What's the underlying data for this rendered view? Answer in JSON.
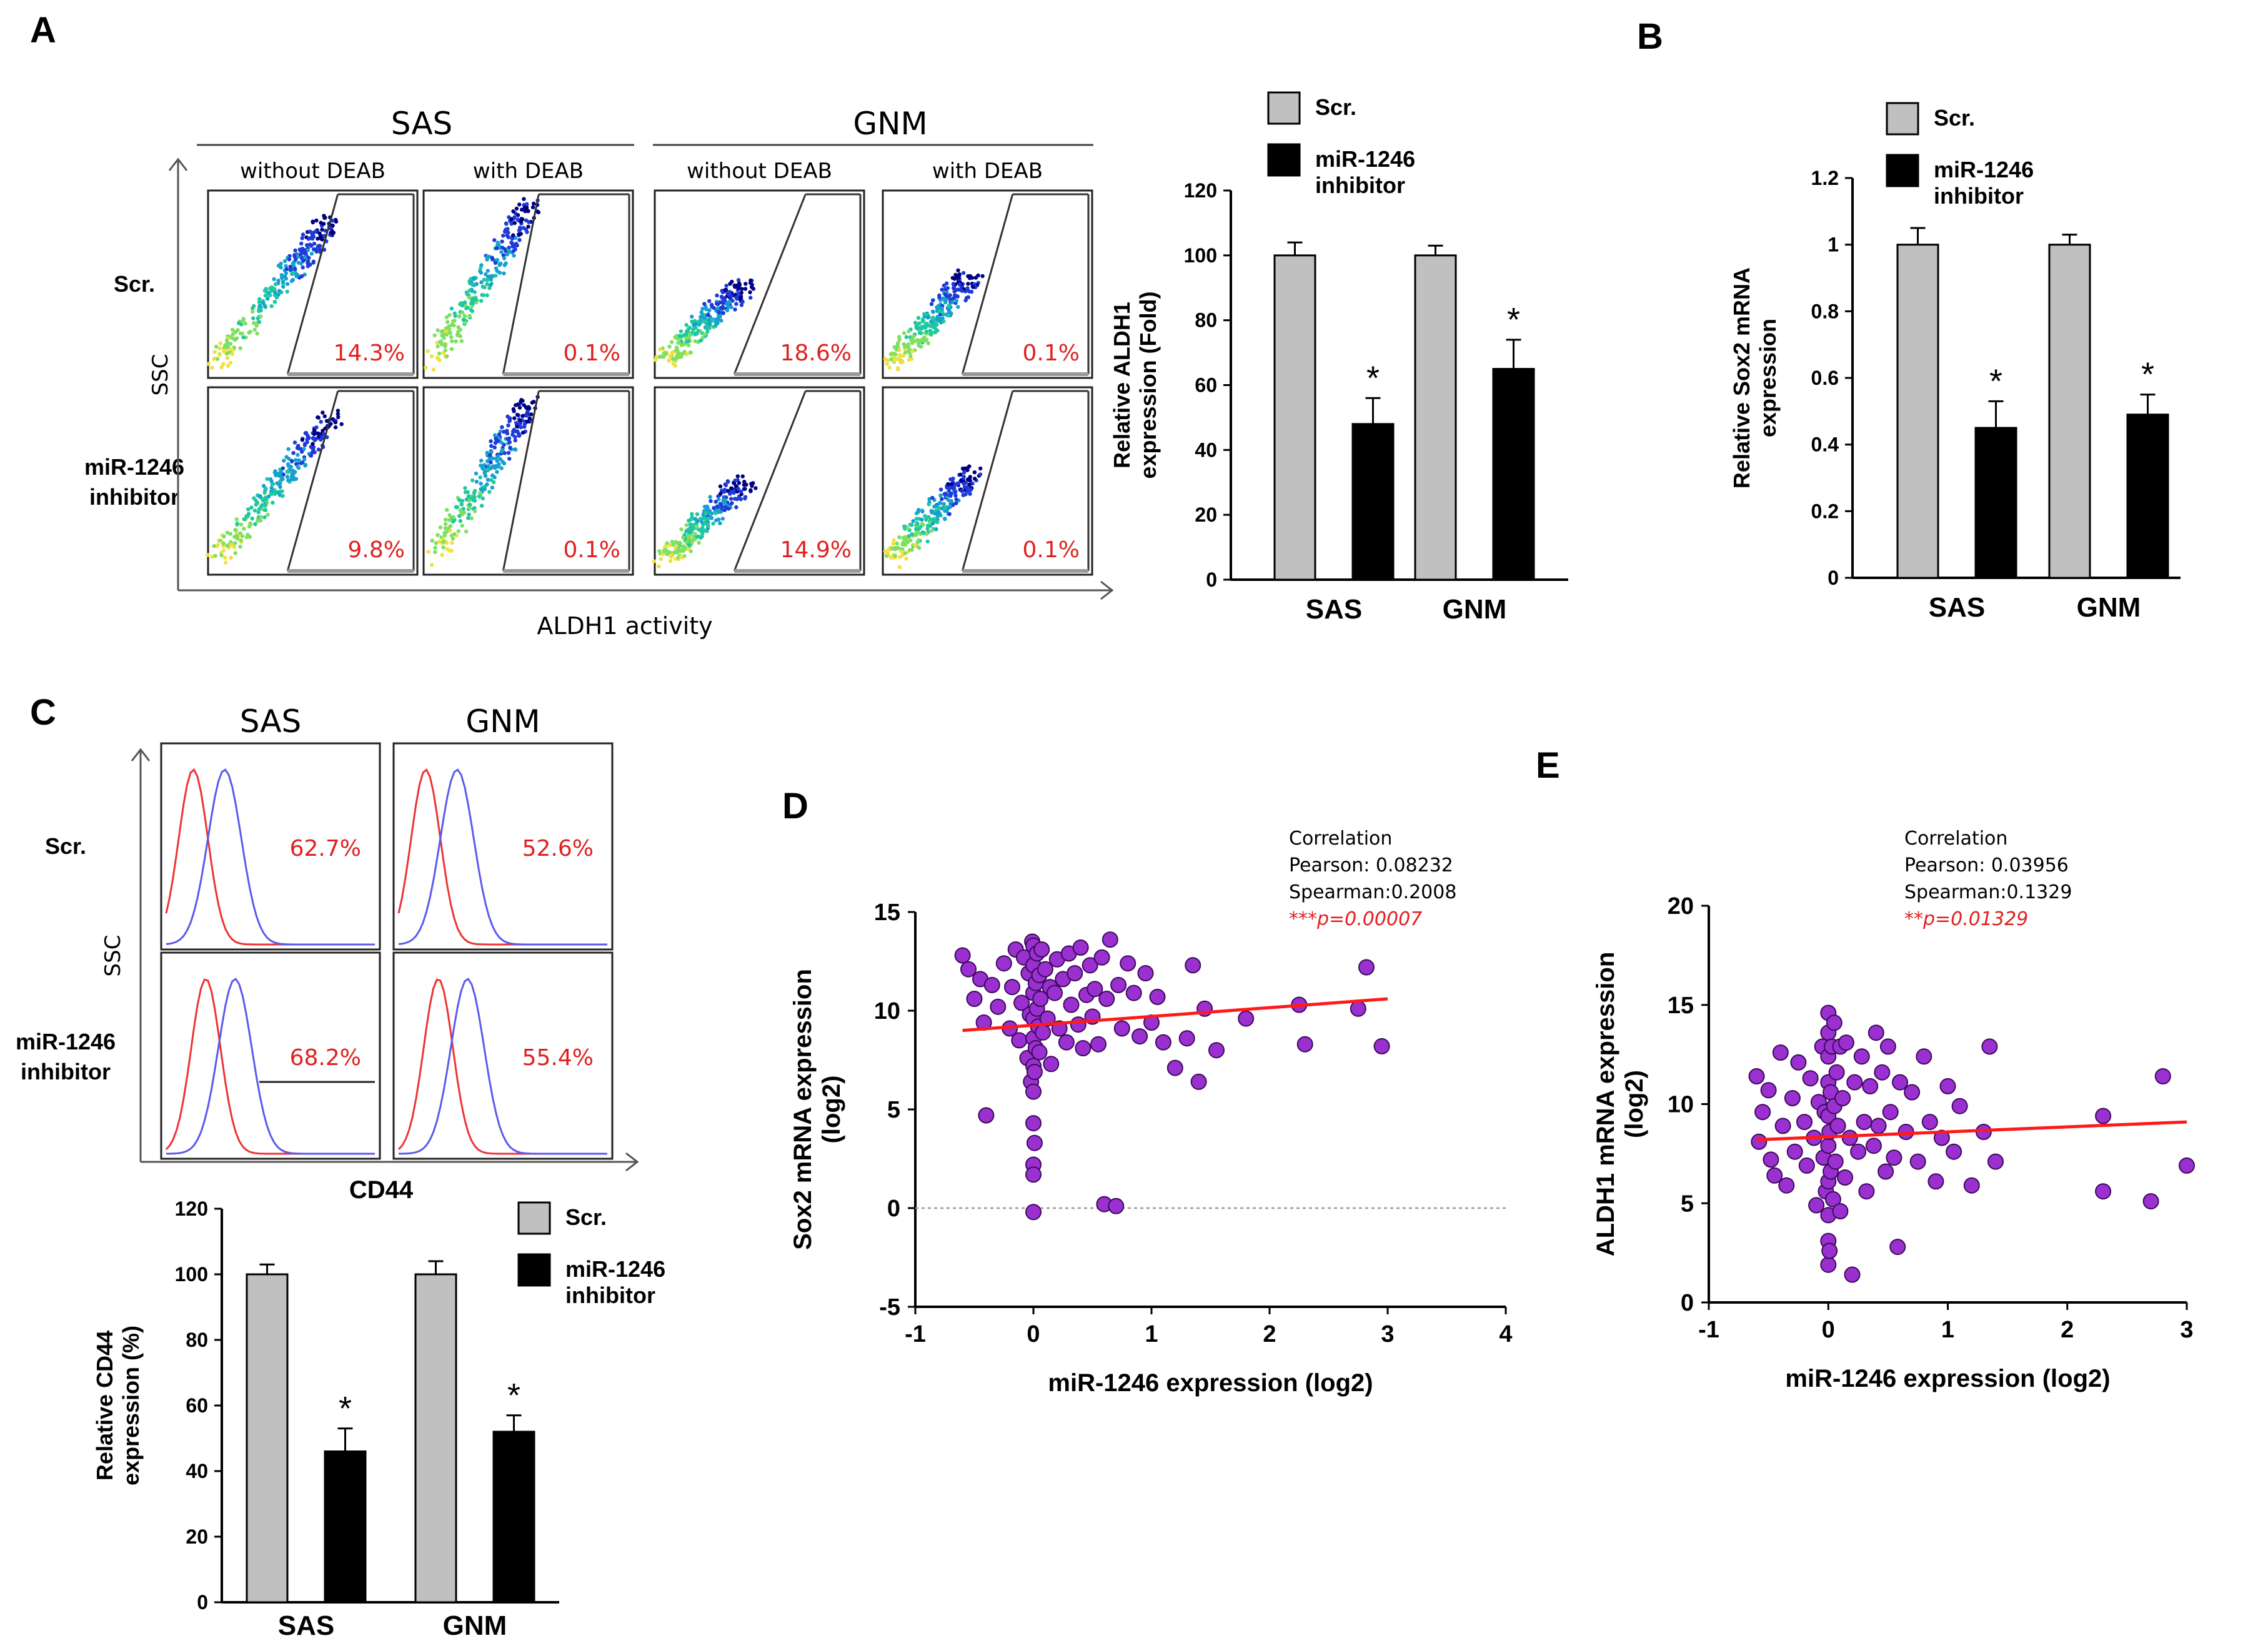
{
  "chart_data": [
    {
      "panel": "A",
      "type": "flow_cytometry_grid",
      "group_titles": [
        "SAS",
        "GNM"
      ],
      "column_titles": [
        "without DEAB",
        "with DEAB",
        "without DEAB",
        "with DEAB"
      ],
      "row_labels": [
        "Scr.",
        "miR-1246\ninhibitor"
      ],
      "percentages": [
        [
          "14.3%",
          "0.1%",
          "18.6%",
          "0.1%"
        ],
        [
          "9.8%",
          "0.1%",
          "14.9%",
          "0.1%"
        ]
      ],
      "ylabel": "SSC",
      "xlabel": "ALDH1 activity"
    },
    {
      "panel": "A",
      "type": "bar",
      "categories": [
        "SAS",
        "GNM"
      ],
      "series": [
        {
          "name": "Scr.",
          "color": "#c0c0c0",
          "values": [
            100,
            100
          ],
          "errors": [
            4,
            3
          ]
        },
        {
          "name": "miR-1246\ninhibitor",
          "color": "#000000",
          "values": [
            48,
            65
          ],
          "errors": [
            8,
            9
          ]
        }
      ],
      "significance": [
        "*",
        "*"
      ],
      "ylabel": "Relative ALDH1\nexpression (Fold)",
      "ylim": [
        0,
        120
      ],
      "yticks": [
        "0",
        "20",
        "40",
        "60",
        "80",
        "100",
        "120"
      ]
    },
    {
      "panel": "B",
      "type": "bar",
      "categories": [
        "SAS",
        "GNM"
      ],
      "series": [
        {
          "name": "Scr.",
          "color": "#c0c0c0",
          "values": [
            1.0,
            1.0
          ],
          "errors": [
            0.05,
            0.03
          ]
        },
        {
          "name": "miR-1246\ninhibitor",
          "color": "#000000",
          "values": [
            0.45,
            0.49
          ],
          "errors": [
            0.08,
            0.06
          ]
        }
      ],
      "significance": [
        "*",
        "*"
      ],
      "ylabel": "Relative Sox2 mRNA\nexpression",
      "ylim": [
        0,
        1.2
      ],
      "yticks": [
        "0",
        "0.2",
        "0.4",
        "0.6",
        "0.8",
        "1",
        "1.2"
      ]
    },
    {
      "panel": "C",
      "type": "histogram_overlay_grid",
      "column_titles": [
        "SAS",
        "GNM"
      ],
      "row_labels": [
        "Scr.",
        "miR-1246\ninhibitor"
      ],
      "percentages": [
        [
          "62.7%",
          "52.6%"
        ],
        [
          "68.2%",
          "55.4%"
        ]
      ],
      "ylabel": "SSC",
      "xlabel": "CD44"
    },
    {
      "panel": "C",
      "type": "bar",
      "categories": [
        "SAS",
        "GNM"
      ],
      "series": [
        {
          "name": "Scr.",
          "color": "#c0c0c0",
          "values": [
            100,
            100
          ],
          "errors": [
            3,
            4
          ]
        },
        {
          "name": "miR-1246\ninhibitor",
          "color": "#000000",
          "values": [
            46,
            52
          ],
          "errors": [
            7,
            5
          ]
        }
      ],
      "significance": [
        "*",
        "*"
      ],
      "ylabel": "Relative CD44\nexpression (%)",
      "ylim": [
        0,
        120
      ],
      "yticks": [
        "0",
        "20",
        "40",
        "60",
        "80",
        "100",
        "120"
      ]
    },
    {
      "panel": "D",
      "type": "scatter",
      "xlabel": "miR-1246 expression (log2)",
      "ylabel": "Sox2 mRNA expression\n(log2)",
      "xlim": [
        -1,
        4
      ],
      "ylim": [
        -5,
        15
      ],
      "xticks": [
        "-1",
        "0",
        "1",
        "2",
        "3",
        "4"
      ],
      "yticks": [
        "-5",
        "0",
        "5",
        "10",
        "15"
      ],
      "fit": {
        "x": [
          -0.6,
          3.0
        ],
        "y": [
          9.0,
          10.6
        ]
      },
      "baseline": 0,
      "annotation": [
        "Correlation",
        "Pearson: 0.08232",
        "Spearman:0.2008",
        "***p=0.00007"
      ],
      "points": [
        [
          -0.6,
          12.8
        ],
        [
          -0.55,
          12.1
        ],
        [
          -0.5,
          10.6
        ],
        [
          -0.45,
          11.6
        ],
        [
          -0.42,
          9.4
        ],
        [
          -0.4,
          4.7
        ],
        [
          -0.35,
          11.3
        ],
        [
          -0.3,
          10.2
        ],
        [
          -0.25,
          12.4
        ],
        [
          -0.2,
          9.1
        ],
        [
          -0.18,
          11.2
        ],
        [
          -0.15,
          13.1
        ],
        [
          -0.12,
          8.5
        ],
        [
          -0.1,
          10.4
        ],
        [
          -0.08,
          12.7
        ],
        [
          -0.05,
          7.6
        ],
        [
          -0.04,
          11.9
        ],
        [
          -0.03,
          9.8
        ],
        [
          -0.02,
          6.4
        ],
        [
          -0.01,
          13.5
        ],
        [
          0,
          2.2
        ],
        [
          0,
          1.7
        ],
        [
          0,
          4.3
        ],
        [
          0,
          5.9
        ],
        [
          0,
          7.2
        ],
        [
          0,
          8.6
        ],
        [
          0,
          9.6
        ],
        [
          0,
          10.9
        ],
        [
          0,
          12.3
        ],
        [
          0,
          13.3
        ],
        [
          0,
          -0.2
        ],
        [
          0.01,
          3.3
        ],
        [
          0.01,
          6.9
        ],
        [
          0.02,
          11.4
        ],
        [
          0.02,
          8.1
        ],
        [
          0.03,
          10.1
        ],
        [
          0.03,
          12.9
        ],
        [
          0.04,
          9.2
        ],
        [
          0.05,
          7.9
        ],
        [
          0.05,
          11.8
        ],
        [
          0.06,
          10.6
        ],
        [
          0.07,
          13.1
        ],
        [
          0.08,
          8.9
        ],
        [
          0.1,
          12.1
        ],
        [
          0.12,
          9.6
        ],
        [
          0.14,
          11.2
        ],
        [
          0.15,
          7.3
        ],
        [
          0.18,
          10.9
        ],
        [
          0.2,
          12.6
        ],
        [
          0.22,
          9.1
        ],
        [
          0.25,
          11.6
        ],
        [
          0.28,
          8.4
        ],
        [
          0.3,
          12.9
        ],
        [
          0.32,
          10.3
        ],
        [
          0.35,
          11.9
        ],
        [
          0.38,
          9.3
        ],
        [
          0.4,
          13.2
        ],
        [
          0.42,
          8.1
        ],
        [
          0.45,
          10.8
        ],
        [
          0.48,
          12.3
        ],
        [
          0.5,
          9.7
        ],
        [
          0.52,
          11.1
        ],
        [
          0.55,
          8.3
        ],
        [
          0.58,
          12.7
        ],
        [
          0.6,
          0.2
        ],
        [
          0.62,
          10.6
        ],
        [
          0.65,
          13.6
        ],
        [
          0.7,
          0.1
        ],
        [
          0.72,
          11.3
        ],
        [
          0.75,
          9.1
        ],
        [
          0.8,
          12.4
        ],
        [
          0.85,
          10.9
        ],
        [
          0.9,
          8.7
        ],
        [
          0.95,
          11.9
        ],
        [
          1.0,
          9.4
        ],
        [
          1.05,
          10.7
        ],
        [
          1.1,
          8.4
        ],
        [
          1.2,
          7.1
        ],
        [
          1.3,
          8.6
        ],
        [
          1.35,
          12.3
        ],
        [
          1.4,
          6.4
        ],
        [
          1.45,
          10.1
        ],
        [
          1.55,
          8.0
        ],
        [
          1.8,
          9.6
        ],
        [
          2.25,
          10.3
        ],
        [
          2.3,
          8.3
        ],
        [
          2.75,
          10.1
        ],
        [
          2.82,
          12.2
        ],
        [
          2.95,
          8.2
        ]
      ]
    },
    {
      "panel": "E",
      "type": "scatter",
      "xlabel": "miR-1246 expression (log2)",
      "ylabel": "ALDH1  mRNA expression\n(log2)",
      "xlim": [
        -1,
        3
      ],
      "ylim": [
        0,
        20
      ],
      "xticks": [
        "-1",
        "0",
        "1",
        "2",
        "3"
      ],
      "yticks": [
        "0",
        "5",
        "10",
        "15",
        "20"
      ],
      "fit": {
        "x": [
          -0.6,
          3.0
        ],
        "y": [
          8.2,
          9.1
        ]
      },
      "annotation": [
        "Correlation",
        "Pearson: 0.03956",
        "Spearman:0.1329",
        "**p=0.01329"
      ],
      "points": [
        [
          -0.6,
          11.4
        ],
        [
          -0.58,
          8.1
        ],
        [
          -0.55,
          9.6
        ],
        [
          -0.5,
          10.7
        ],
        [
          -0.48,
          7.2
        ],
        [
          -0.45,
          6.4
        ],
        [
          -0.4,
          12.6
        ],
        [
          -0.38,
          8.9
        ],
        [
          -0.35,
          5.9
        ],
        [
          -0.3,
          10.3
        ],
        [
          -0.28,
          7.6
        ],
        [
          -0.25,
          12.1
        ],
        [
          -0.2,
          9.1
        ],
        [
          -0.18,
          6.9
        ],
        [
          -0.15,
          11.3
        ],
        [
          -0.12,
          8.3
        ],
        [
          -0.1,
          4.9
        ],
        [
          -0.08,
          10.1
        ],
        [
          -0.05,
          12.9
        ],
        [
          -0.04,
          7.3
        ],
        [
          -0.03,
          9.6
        ],
        [
          -0.02,
          5.6
        ],
        [
          0,
          1.9
        ],
        [
          0,
          3.1
        ],
        [
          0,
          4.4
        ],
        [
          0,
          6.1
        ],
        [
          0,
          7.9
        ],
        [
          0,
          9.4
        ],
        [
          0,
          11.1
        ],
        [
          0,
          12.4
        ],
        [
          0,
          13.6
        ],
        [
          0,
          14.6
        ],
        [
          0.01,
          2.6
        ],
        [
          0.01,
          8.6
        ],
        [
          0.02,
          10.6
        ],
        [
          0.02,
          6.6
        ],
        [
          0.03,
          12.9
        ],
        [
          0.04,
          5.2
        ],
        [
          0.05,
          9.9
        ],
        [
          0.05,
          14.1
        ],
        [
          0.06,
          7.1
        ],
        [
          0.07,
          11.6
        ],
        [
          0.08,
          8.9
        ],
        [
          0.1,
          12.9
        ],
        [
          0.1,
          4.6
        ],
        [
          0.12,
          10.3
        ],
        [
          0.14,
          6.3
        ],
        [
          0.15,
          13.1
        ],
        [
          0.18,
          8.3
        ],
        [
          0.2,
          1.4
        ],
        [
          0.22,
          11.1
        ],
        [
          0.25,
          7.6
        ],
        [
          0.28,
          12.4
        ],
        [
          0.3,
          9.1
        ],
        [
          0.32,
          5.6
        ],
        [
          0.35,
          10.9
        ],
        [
          0.38,
          7.9
        ],
        [
          0.4,
          13.6
        ],
        [
          0.42,
          8.9
        ],
        [
          0.45,
          11.6
        ],
        [
          0.48,
          6.6
        ],
        [
          0.5,
          12.9
        ],
        [
          0.52,
          9.6
        ],
        [
          0.55,
          7.3
        ],
        [
          0.58,
          2.8
        ],
        [
          0.6,
          11.1
        ],
        [
          0.65,
          8.6
        ],
        [
          0.7,
          10.6
        ],
        [
          0.75,
          7.1
        ],
        [
          0.8,
          12.4
        ],
        [
          0.85,
          9.1
        ],
        [
          0.9,
          6.1
        ],
        [
          0.95,
          8.3
        ],
        [
          1.0,
          10.9
        ],
        [
          1.05,
          7.6
        ],
        [
          1.1,
          9.9
        ],
        [
          1.2,
          5.9
        ],
        [
          1.3,
          8.6
        ],
        [
          1.35,
          12.9
        ],
        [
          1.4,
          7.1
        ],
        [
          2.3,
          5.6
        ],
        [
          2.3,
          9.4
        ],
        [
          2.7,
          5.1
        ],
        [
          2.8,
          11.4
        ],
        [
          3.0,
          6.9
        ]
      ]
    }
  ]
}
